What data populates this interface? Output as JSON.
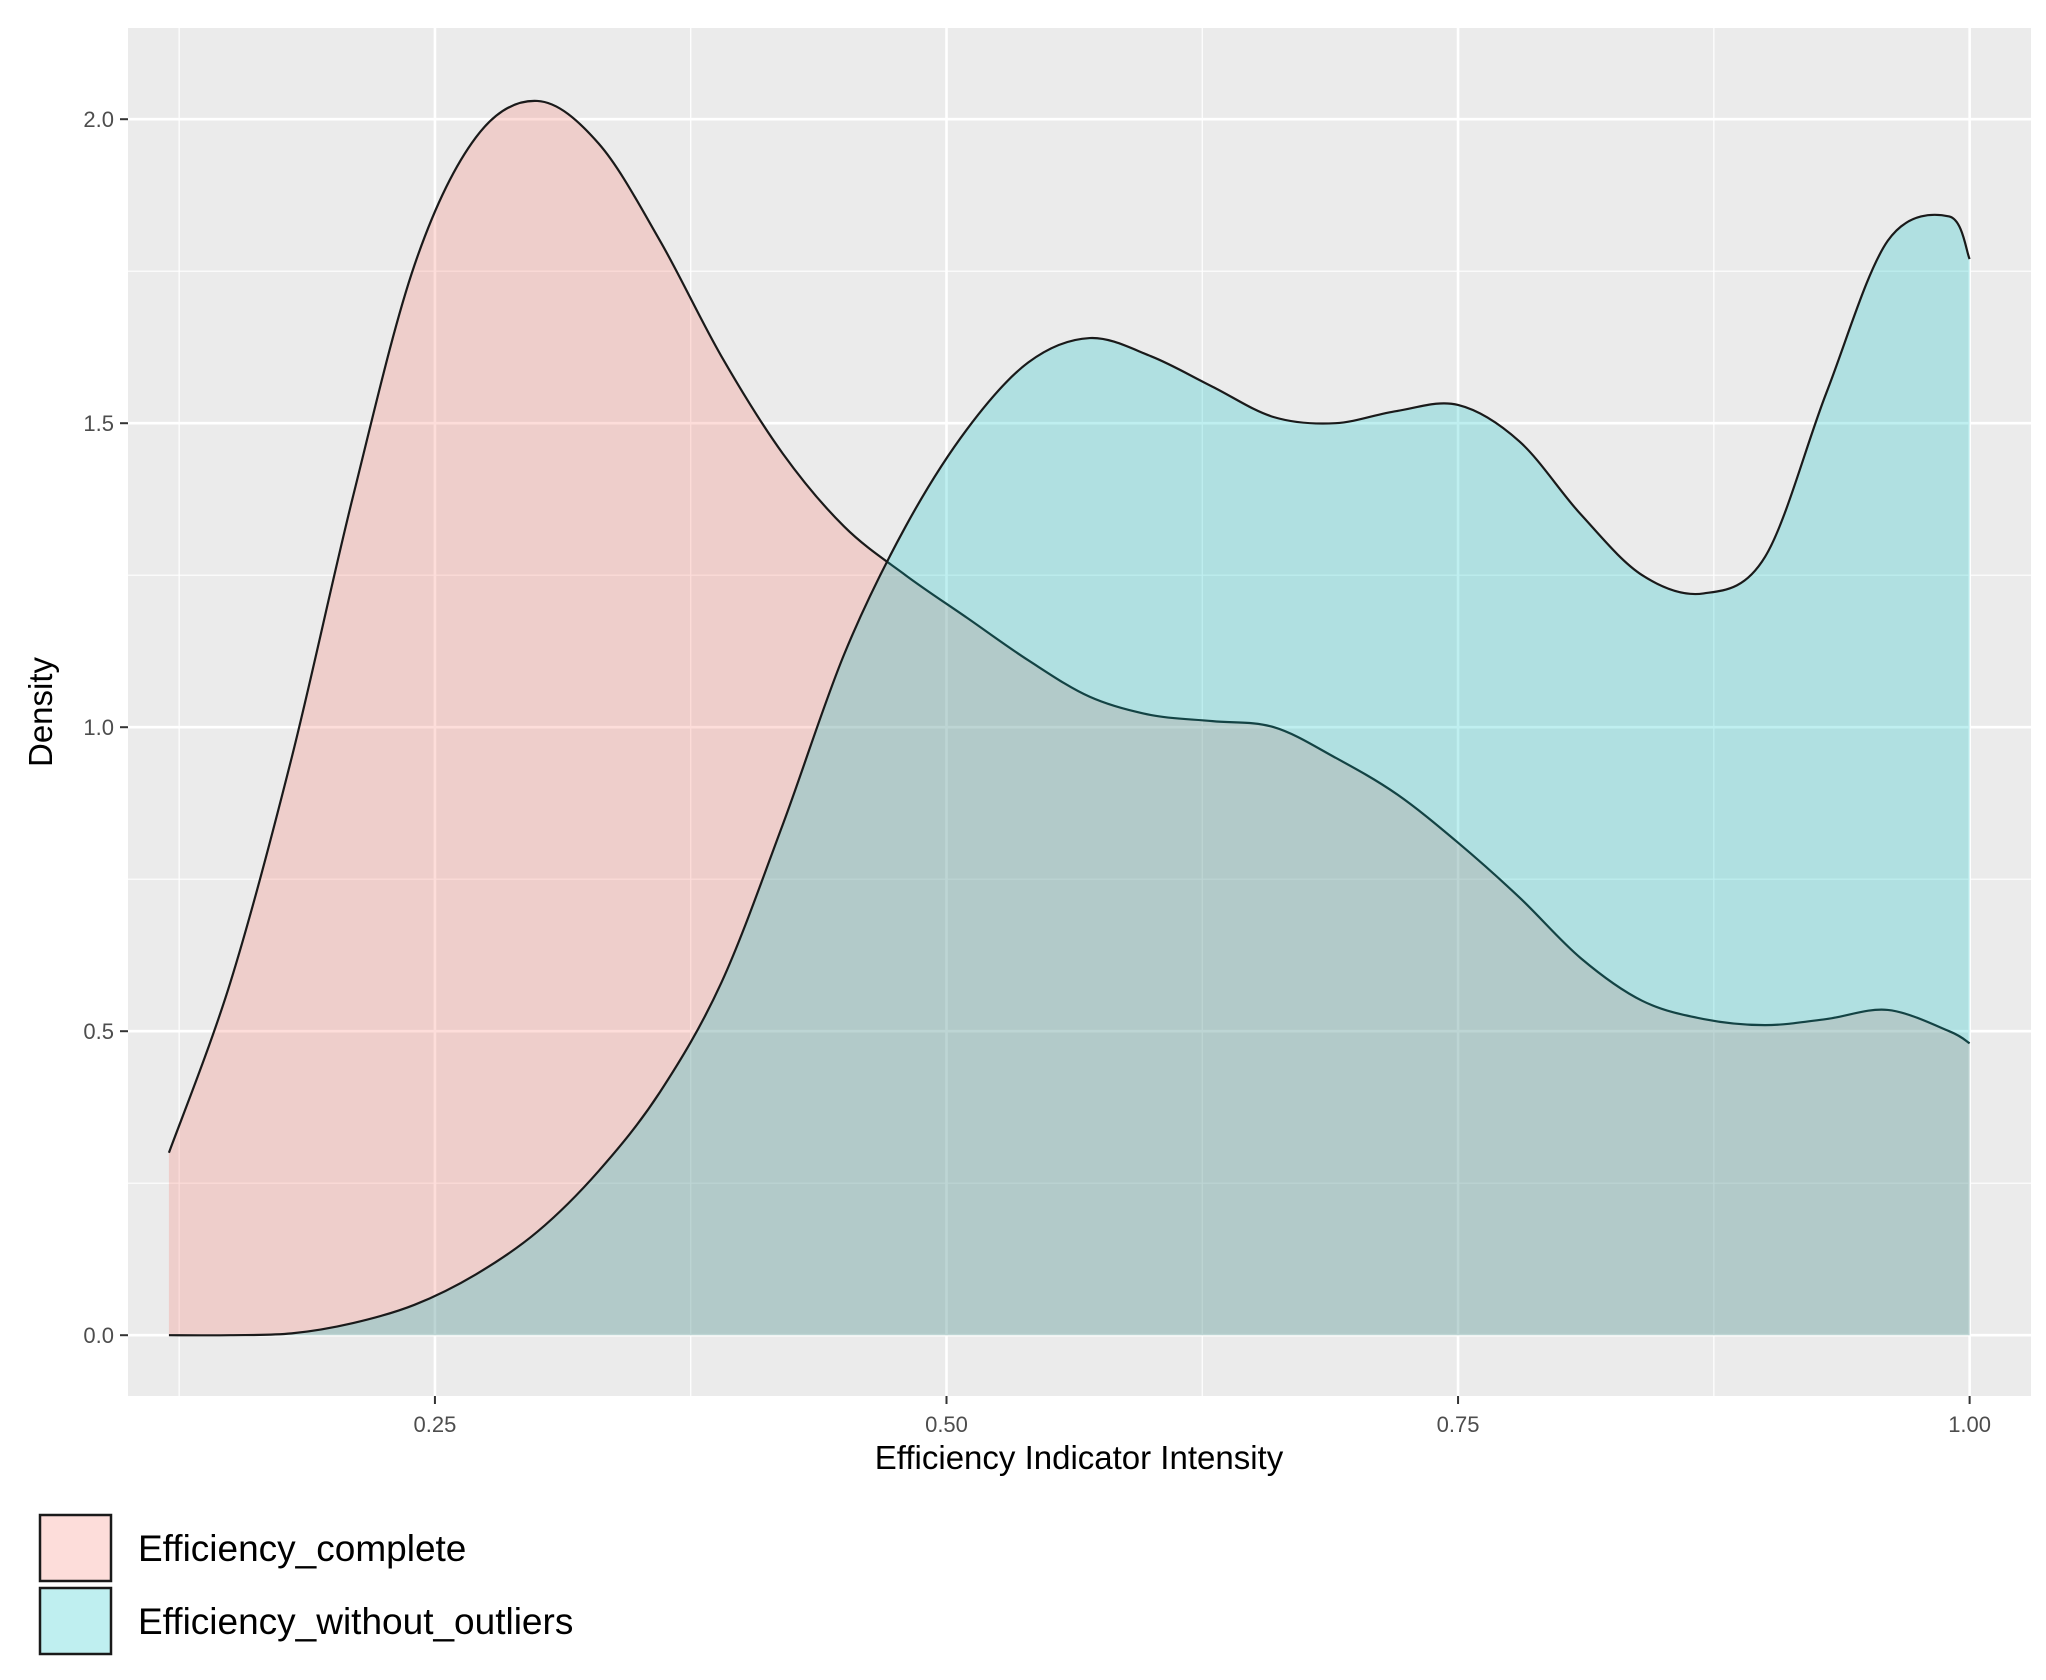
{
  "chart_data": {
    "type": "area",
    "chart_subtype": "density",
    "xlabel": "Efficiency Indicator Intensity",
    "ylabel": "Density",
    "xlim": [
      0.1,
      1.03
    ],
    "ylim": [
      -0.1,
      2.15
    ],
    "x_ticks": [
      0.25,
      0.5,
      0.75,
      1.0
    ],
    "x_tick_labels": [
      "0.25",
      "0.50",
      "0.75",
      "1.00"
    ],
    "y_ticks": [
      0.0,
      0.5,
      1.0,
      1.5,
      2.0
    ],
    "y_tick_labels": [
      "0.0",
      "0.5",
      "1.0",
      "1.5",
      "2.0"
    ],
    "grid": true,
    "panel_background": "#ebebeb",
    "legend_position": "bottom-left",
    "series": [
      {
        "name": "Efficiency_complete",
        "fill": "#f8766d",
        "fill_opacity": 0.25,
        "x": [
          0.12,
          0.15,
          0.18,
          0.21,
          0.24,
          0.27,
          0.3,
          0.33,
          0.36,
          0.39,
          0.42,
          0.45,
          0.48,
          0.51,
          0.54,
          0.57,
          0.6,
          0.63,
          0.66,
          0.69,
          0.72,
          0.75,
          0.78,
          0.81,
          0.84,
          0.87,
          0.9,
          0.93,
          0.96,
          0.99,
          1.0
        ],
        "values": [
          0.3,
          0.58,
          0.95,
          1.38,
          1.76,
          1.97,
          2.03,
          1.96,
          1.8,
          1.61,
          1.45,
          1.33,
          1.25,
          1.18,
          1.11,
          1.05,
          1.02,
          1.01,
          1.0,
          0.95,
          0.89,
          0.81,
          0.72,
          0.62,
          0.55,
          0.52,
          0.51,
          0.52,
          0.535,
          0.5,
          0.48
        ]
      },
      {
        "name": "Efficiency_without_outliers",
        "fill": "#00bfc4",
        "fill_opacity": 0.25,
        "x": [
          0.12,
          0.15,
          0.18,
          0.21,
          0.24,
          0.27,
          0.3,
          0.33,
          0.36,
          0.39,
          0.42,
          0.45,
          0.48,
          0.51,
          0.54,
          0.57,
          0.6,
          0.63,
          0.66,
          0.69,
          0.72,
          0.75,
          0.78,
          0.81,
          0.84,
          0.87,
          0.9,
          0.93,
          0.96,
          0.99,
          1.0
        ],
        "values": [
          0.0,
          0.0,
          0.003,
          0.02,
          0.05,
          0.1,
          0.17,
          0.27,
          0.4,
          0.58,
          0.84,
          1.12,
          1.33,
          1.49,
          1.6,
          1.64,
          1.61,
          1.56,
          1.51,
          1.5,
          1.52,
          1.53,
          1.47,
          1.35,
          1.25,
          1.22,
          1.28,
          1.55,
          1.8,
          1.84,
          1.77
        ]
      }
    ]
  }
}
